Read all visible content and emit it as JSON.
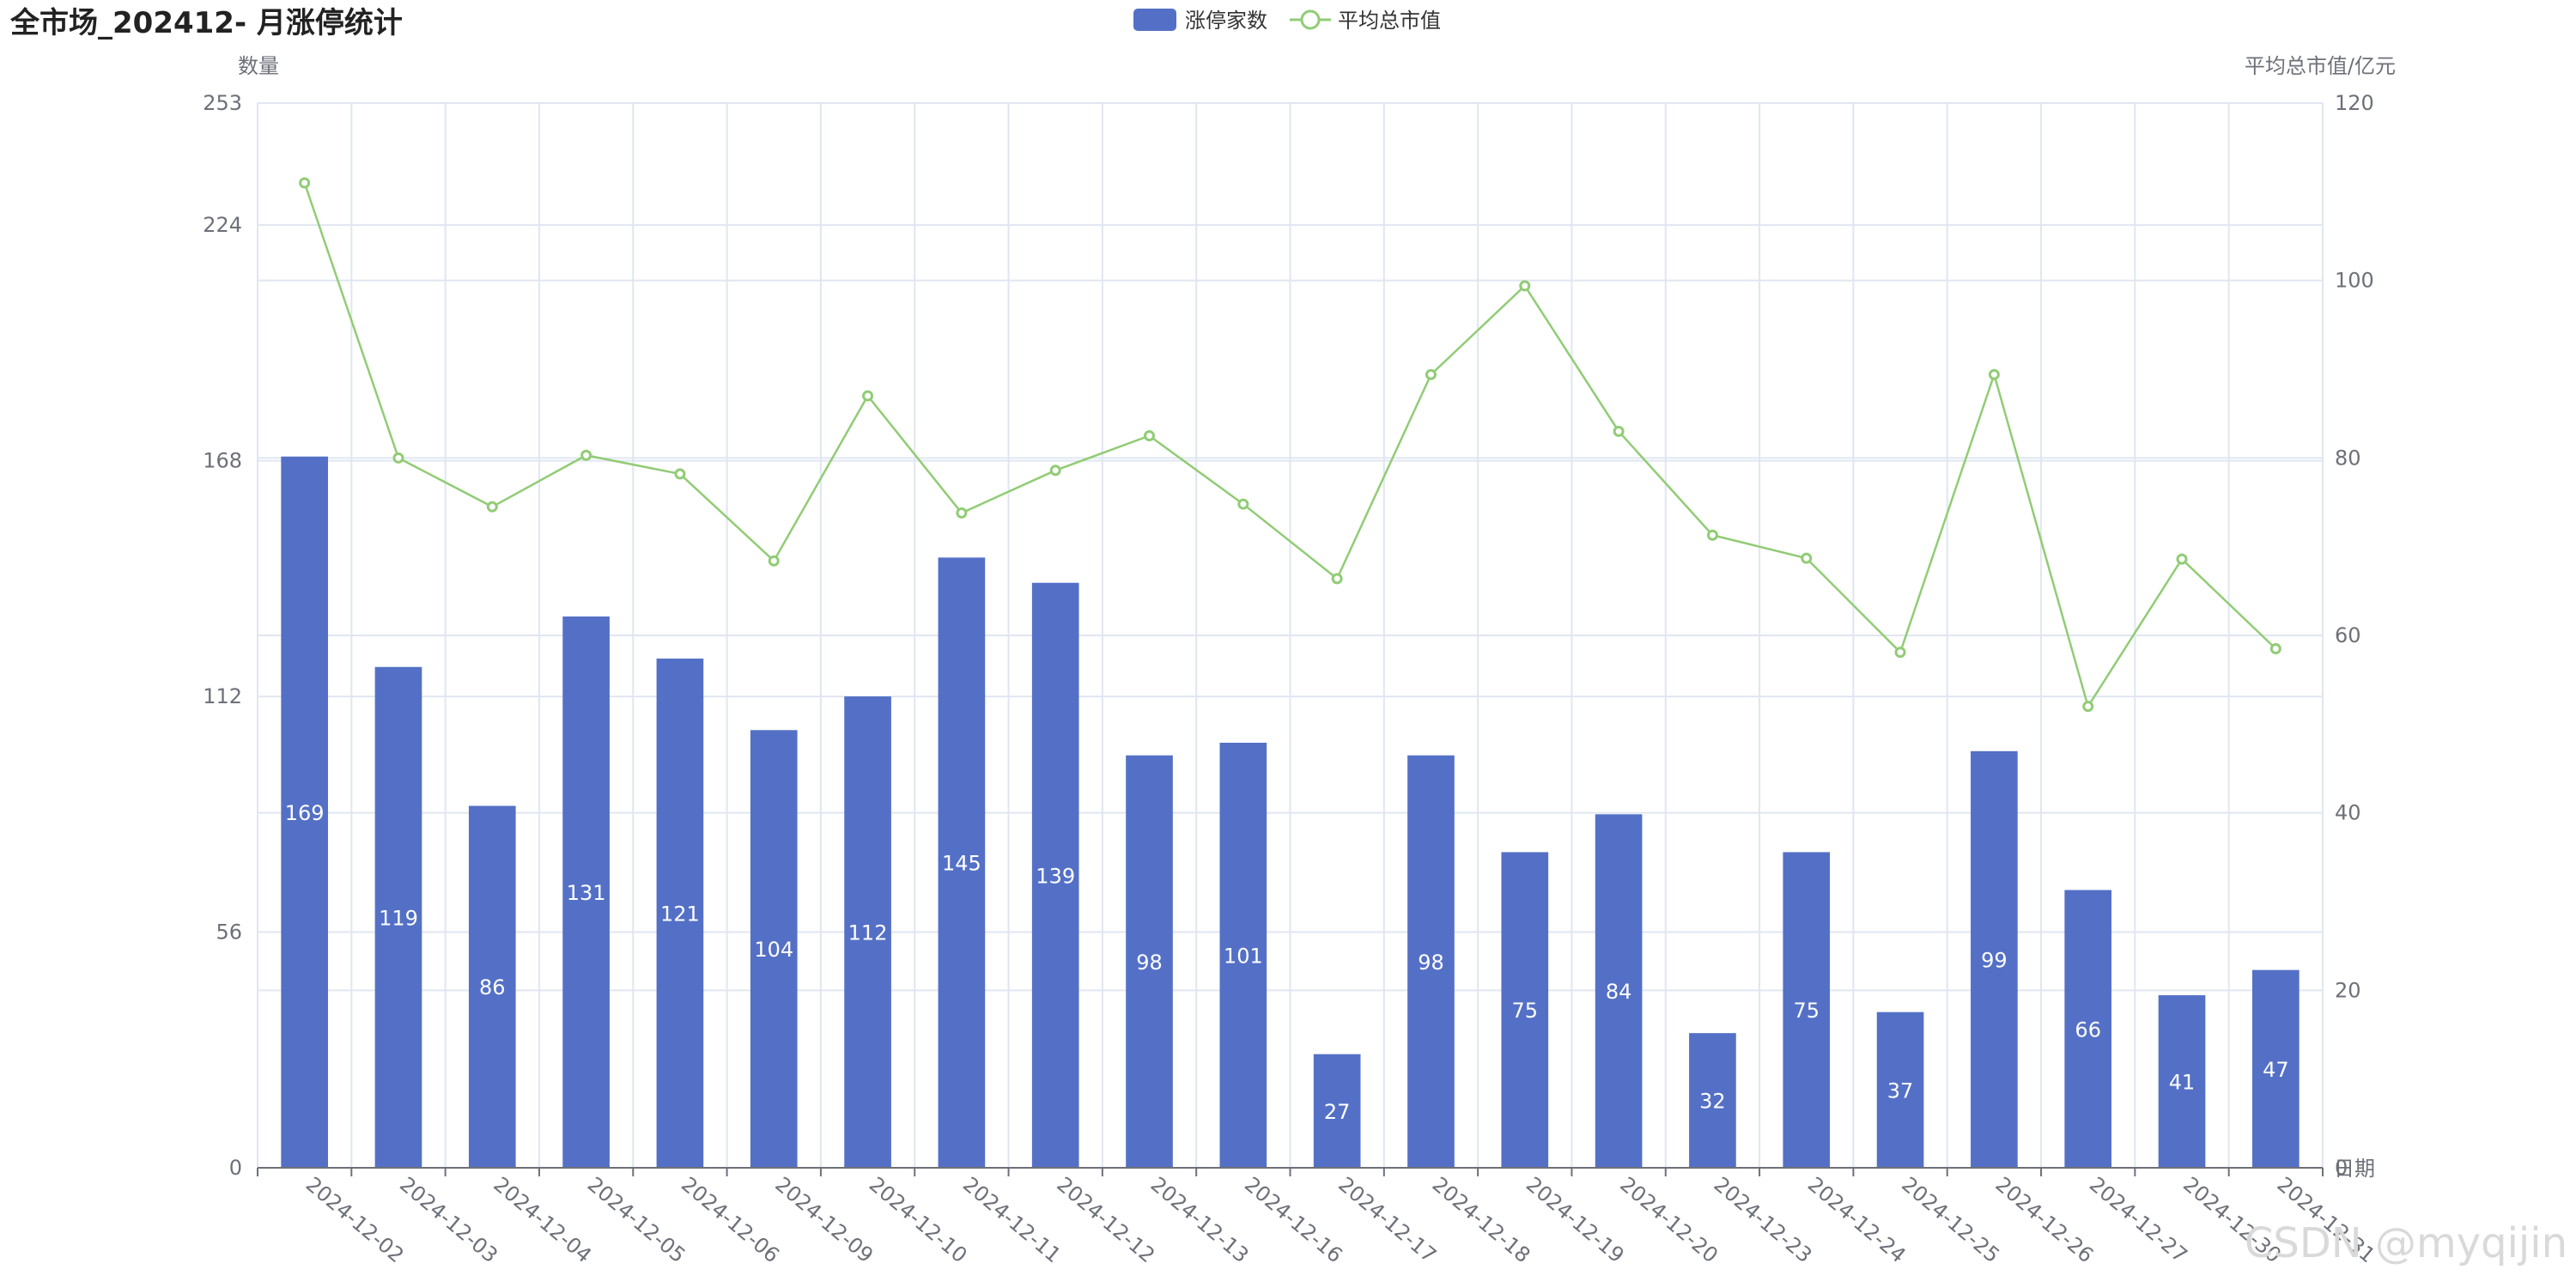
{
  "chart_data": {
    "type": "bar",
    "title": "全市场_202412- 月涨停统计",
    "xlabel": "日期",
    "ylabel": "数量",
    "y2label": "平均总市值/亿元",
    "categories": [
      "2024-12-02",
      "2024-12-03",
      "2024-12-04",
      "2024-12-05",
      "2024-12-06",
      "2024-12-09",
      "2024-12-10",
      "2024-12-11",
      "2024-12-12",
      "2024-12-13",
      "2024-12-16",
      "2024-12-17",
      "2024-12-18",
      "2024-12-19",
      "2024-12-20",
      "2024-12-23",
      "2024-12-24",
      "2024-12-25",
      "2024-12-26",
      "2024-12-27",
      "2024-12-30",
      "2024-12-31"
    ],
    "ylim": [
      0,
      253
    ],
    "yticks": [
      0,
      56,
      112,
      168,
      224,
      253
    ],
    "y2lim": [
      0,
      120
    ],
    "y2ticks": [
      0,
      20,
      40,
      60,
      80,
      100,
      120
    ],
    "grid": true,
    "legend_position": "top-center",
    "series": [
      {
        "name": "涨停家数",
        "type": "bar",
        "axis": "left",
        "color": "#5470c6",
        "values": [
          169,
          119,
          86,
          131,
          121,
          104,
          112,
          145,
          139,
          98,
          101,
          27,
          98,
          75,
          84,
          32,
          75,
          37,
          99,
          66,
          41,
          47
        ],
        "show_labels": true
      },
      {
        "name": "平均总市值",
        "type": "line",
        "axis": "right",
        "color": "#91cc75",
        "values": [
          111,
          80,
          74.5,
          80.3,
          78.2,
          68.4,
          87,
          73.8,
          78.6,
          82.5,
          74.8,
          66.4,
          89.4,
          99.4,
          83,
          71.3,
          68.7,
          58.1,
          89.4,
          52,
          68.6,
          58.5
        ]
      }
    ]
  },
  "watermark": "CSDN @myqijin"
}
